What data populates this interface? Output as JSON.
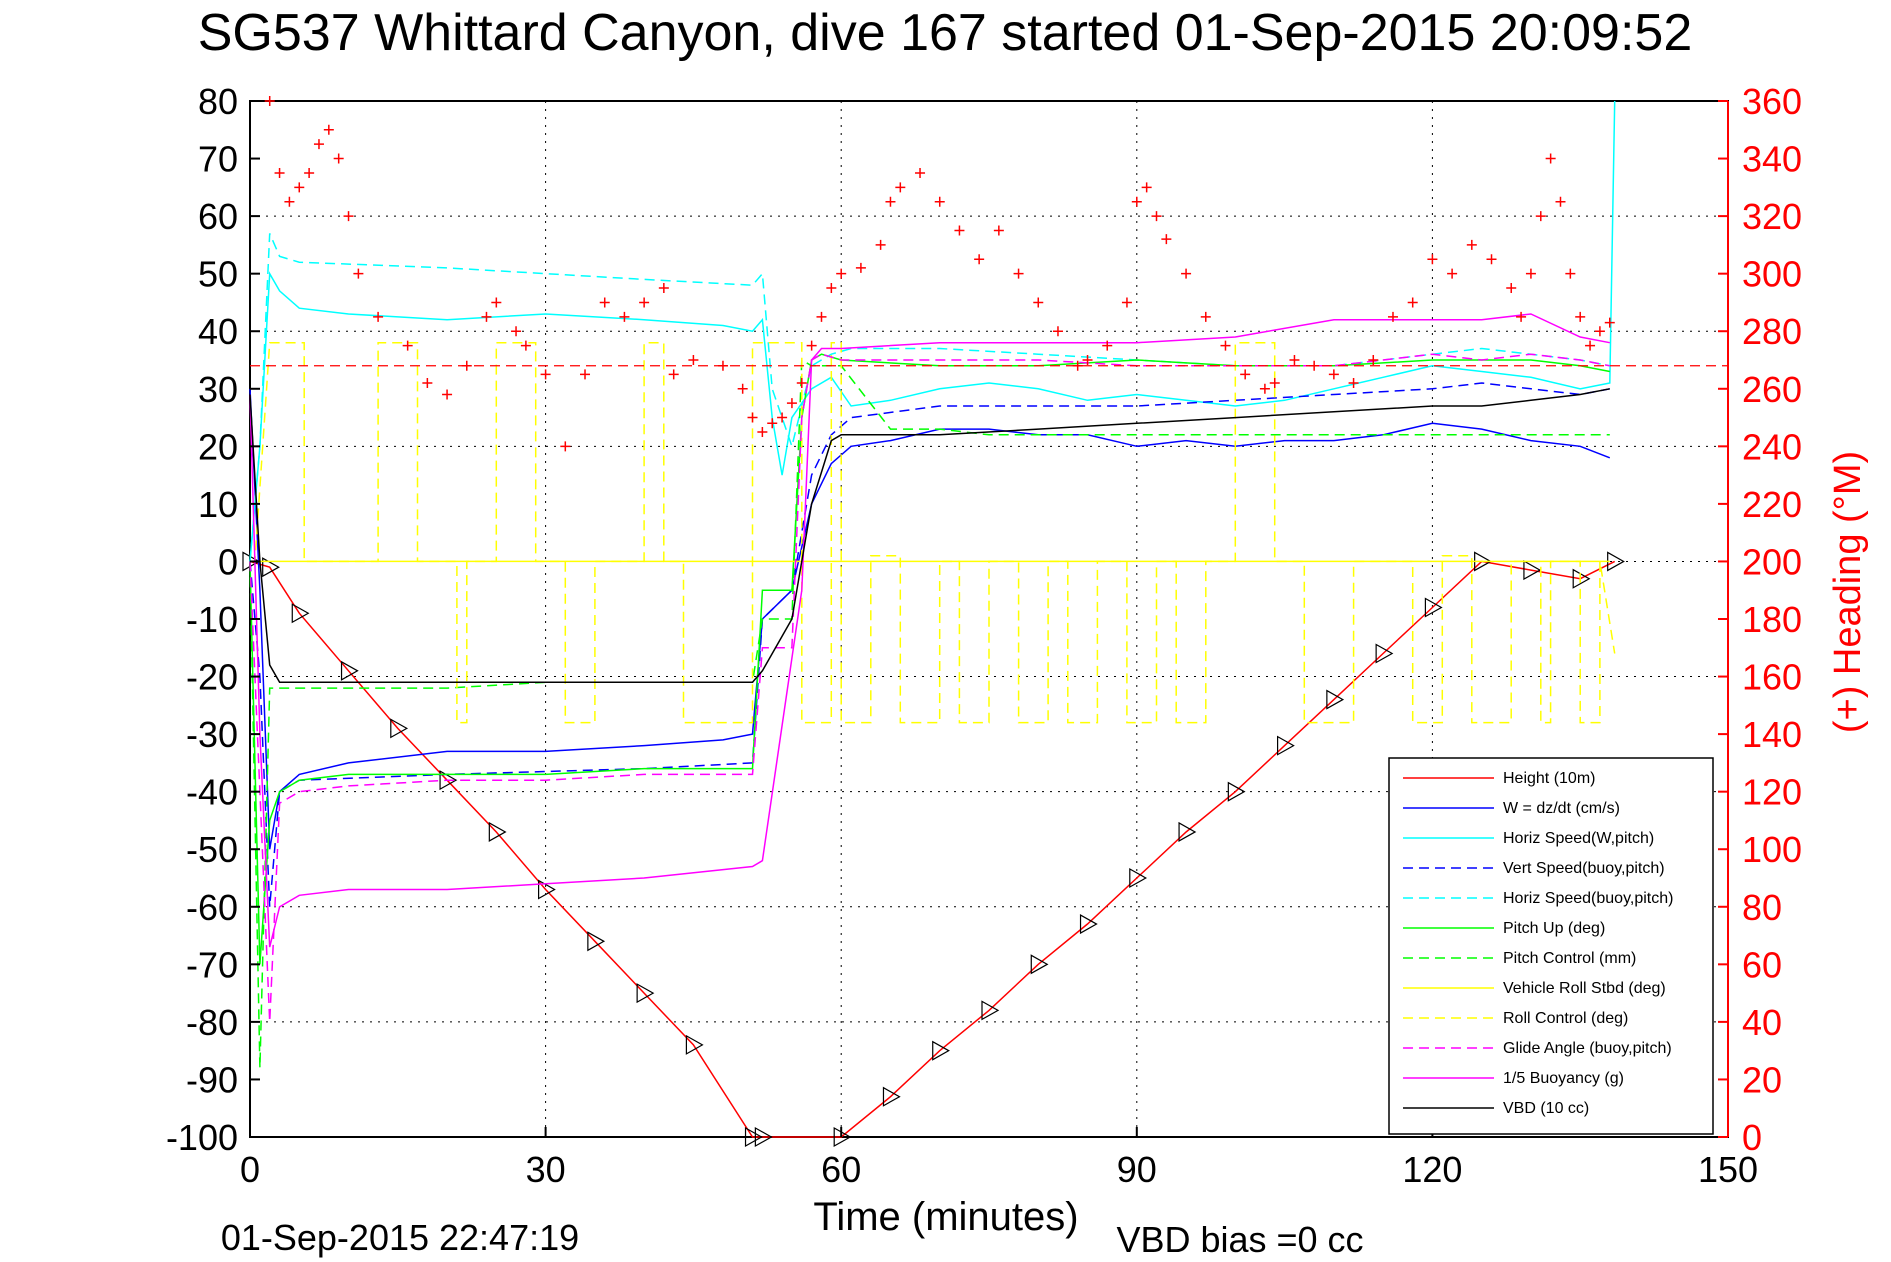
{
  "chart_data": {
    "type": "line",
    "title": "SG537 Whittard Canyon, dive 167 started 01-Sep-2015 20:09:52",
    "xlabel": "Time (minutes)",
    "ylabel": "",
    "y2label": "(+) Heading (°M)",
    "xlim": [
      0,
      150
    ],
    "ylim": [
      -100,
      80
    ],
    "y2lim": [
      0,
      360
    ],
    "x_ticks": [
      "0",
      "30",
      "60",
      "90",
      "120",
      "150"
    ],
    "y_ticks": [
      "80",
      "70",
      "60",
      "50",
      "40",
      "30",
      "20",
      "10",
      "0",
      "-10",
      "-20",
      "-30",
      "-40",
      "-50",
      "-60",
      "-70",
      "-80",
      "-90",
      "-100"
    ],
    "y2_ticks": [
      "360",
      "340",
      "320",
      "300",
      "280",
      "260",
      "240",
      "220",
      "200",
      "180",
      "160",
      "140",
      "120",
      "100",
      "80",
      "60",
      "40",
      "20",
      "0"
    ],
    "grid": true,
    "legend_position": "bottom-right",
    "footer_left": "01-Sep-2015 22:47:19",
    "footer_right": "VBD bias =0 cc",
    "series": [
      {
        "name": "Height (10m)",
        "color": "#ff0000",
        "style": "solid",
        "markers": "triangle",
        "x": [
          0,
          2,
          5,
          10,
          15,
          20,
          25,
          30,
          35,
          40,
          45,
          51,
          52,
          60,
          65,
          70,
          75,
          80,
          85,
          90,
          95,
          100,
          105,
          110,
          115,
          120,
          125,
          130,
          135,
          138.5
        ],
        "y": [
          0,
          -1,
          -9,
          -19,
          -29,
          -38,
          -47,
          -57,
          -66,
          -75,
          -84,
          -100,
          -100,
          -100,
          -93,
          -85,
          -78,
          -70,
          -63,
          -55,
          -47,
          -40,
          -32,
          -24,
          -16,
          -8,
          0,
          -1.5,
          -3,
          0
        ]
      },
      {
        "name": "W = dz/dt (cm/s)",
        "color": "#0000ff",
        "style": "solid",
        "markers": "none",
        "x": [
          0,
          1,
          2,
          3,
          5,
          10,
          20,
          30,
          40,
          48,
          51,
          52,
          55,
          57,
          59,
          61,
          65,
          70,
          75,
          80,
          85,
          90,
          95,
          100,
          105,
          110,
          115,
          120,
          125,
          130,
          135,
          138
        ],
        "y": [
          30,
          -5,
          -50,
          -40,
          -37,
          -35,
          -33,
          -33,
          -32,
          -31,
          -30,
          -10,
          -5,
          10,
          17,
          20,
          21,
          23,
          23,
          22,
          22,
          20,
          21,
          20,
          21,
          21,
          22,
          24,
          23,
          21,
          20,
          18
        ]
      },
      {
        "name": "Horiz Speed(W,pitch)",
        "color": "#00ffff",
        "style": "solid",
        "markers": "none",
        "x": [
          0,
          1,
          2,
          3,
          5,
          10,
          20,
          30,
          40,
          48,
          51,
          52,
          53,
          54,
          55,
          57,
          59,
          61,
          65,
          70,
          75,
          80,
          85,
          90,
          95,
          100,
          105,
          110,
          115,
          120,
          125,
          130,
          135,
          138,
          138.5
        ],
        "y": [
          0,
          20,
          50,
          47,
          44,
          43,
          42,
          43,
          42,
          41,
          40,
          42,
          25,
          15,
          25,
          30,
          32,
          27,
          28,
          30,
          31,
          30,
          28,
          29,
          28,
          27,
          28,
          30,
          32,
          34,
          33,
          32,
          30,
          31,
          80
        ]
      },
      {
        "name": "Vert Speed(buoy,pitch)",
        "color": "#0000ff",
        "style": "dashed",
        "markers": "none",
        "x": [
          0,
          1,
          2,
          3,
          5,
          20,
          40,
          51,
          52,
          55,
          57,
          59,
          61,
          70,
          80,
          90,
          100,
          110,
          120,
          125,
          130,
          135,
          138
        ],
        "y": [
          0,
          -20,
          -60,
          -40,
          -38,
          -37,
          -36,
          -35,
          -10,
          -5,
          15,
          22,
          25,
          27,
          27,
          27,
          28,
          29,
          30,
          31,
          30,
          29,
          30
        ]
      },
      {
        "name": "Horiz Speed(buoy,pitch)",
        "color": "#00ffff",
        "style": "dashed",
        "markers": "none",
        "x": [
          0,
          1,
          2,
          3,
          5,
          20,
          40,
          51,
          52,
          53,
          55,
          57,
          59,
          61,
          70,
          80,
          90,
          100,
          110,
          120,
          125,
          130,
          135,
          138
        ],
        "y": [
          0,
          20,
          57,
          53,
          52,
          51,
          49,
          48,
          50,
          30,
          20,
          34,
          36,
          37,
          37,
          36,
          35,
          34,
          34,
          36,
          37,
          36,
          35,
          34
        ]
      },
      {
        "name": "Pitch Up (deg)",
        "color": "#00ff00",
        "style": "solid",
        "markers": "none",
        "x": [
          0,
          1,
          2,
          3,
          5,
          10,
          20,
          30,
          40,
          51,
          52,
          55,
          56,
          57,
          58,
          60,
          70,
          80,
          90,
          100,
          110,
          120,
          125,
          130,
          135,
          138
        ],
        "y": [
          0,
          -70,
          -45,
          -40,
          -38,
          -37,
          -37,
          -37,
          -36,
          -36,
          -5,
          -5,
          25,
          35,
          36,
          35,
          34,
          34,
          35,
          34,
          34,
          35,
          35,
          35,
          34,
          33
        ]
      },
      {
        "name": "Pitch Control (mm)",
        "color": "#00ff00",
        "style": "dashed",
        "markers": "none",
        "x": [
          0,
          1,
          2,
          3,
          10,
          20,
          30,
          40,
          51,
          52,
          55,
          56,
          57,
          60,
          65,
          70,
          75,
          80,
          90,
          100,
          110,
          120,
          130,
          135,
          138
        ],
        "y": [
          0,
          -88,
          -22,
          -22,
          -22,
          -22,
          -21,
          -21,
          -21,
          -10,
          -10,
          35,
          34,
          34,
          23,
          23,
          22,
          22,
          22,
          22,
          22,
          22,
          22,
          22,
          22
        ]
      },
      {
        "name": "Vehicle Roll Stbd (deg)",
        "color": "#ffff00",
        "style": "solid",
        "markers": "none",
        "x": [
          0,
          60,
          138
        ],
        "y": [
          0,
          0,
          0
        ]
      },
      {
        "name": "Roll Control (deg)",
        "color": "#ffff00",
        "style": "dashed",
        "markers": "none",
        "x": [
          0,
          0.5,
          2,
          5.5,
          5.5,
          13,
          13,
          17,
          17,
          21,
          21,
          22,
          22,
          25,
          25,
          29,
          29,
          32,
          32,
          35,
          35,
          40,
          40,
          42,
          42,
          44,
          44,
          51,
          51,
          56,
          56,
          59,
          59,
          60,
          60,
          63,
          63,
          66,
          66,
          70,
          70,
          72,
          72,
          75,
          75,
          78,
          78,
          81,
          81,
          83,
          83,
          86,
          86,
          89,
          89,
          92,
          92,
          94,
          94,
          97,
          97,
          100,
          100,
          104,
          104,
          107,
          107,
          112,
          112,
          118,
          118,
          121,
          121,
          124,
          124,
          128,
          128,
          131,
          131,
          132,
          132,
          135,
          135,
          137,
          137,
          138.5
        ],
        "y": [
          0,
          0,
          38,
          38,
          0,
          0,
          38,
          38,
          0,
          0,
          -28,
          -28,
          0,
          0,
          38,
          38,
          0,
          0,
          -28,
          -28,
          0,
          0,
          38,
          38,
          0,
          0,
          -28,
          -28,
          38,
          38,
          -28,
          -28,
          38,
          38,
          -28,
          -28,
          1,
          1,
          -28,
          -28,
          0,
          0,
          -28,
          -28,
          0,
          0,
          -28,
          -28,
          0,
          0,
          -28,
          -28,
          0,
          0,
          -28,
          -28,
          0,
          0,
          -28,
          -28,
          0,
          0,
          38,
          38,
          0,
          0,
          -28,
          -28,
          0,
          0,
          -28,
          -28,
          1,
          1,
          -28,
          -28,
          0,
          0,
          -28,
          -28,
          0,
          0,
          -28,
          -28,
          0,
          -16
        ]
      },
      {
        "name": "Glide Angle (buoy,pitch)",
        "color": "#ff00ff",
        "style": "dashed",
        "markers": "none",
        "x": [
          0,
          1,
          2,
          3,
          5,
          10,
          20,
          30,
          40,
          51,
          52,
          55,
          56,
          57,
          58,
          60,
          70,
          80,
          90,
          100,
          110,
          120,
          125,
          130,
          135,
          138
        ],
        "y": [
          0,
          -40,
          -80,
          -42,
          -40,
          -39,
          -38,
          -38,
          -37,
          -37,
          -15,
          -15,
          25,
          35,
          36,
          35,
          35,
          35,
          34,
          34,
          34,
          36,
          35,
          36,
          35,
          34
        ]
      },
      {
        "name": "1/5 Buoyancy (g)",
        "color": "#ff00ff",
        "style": "solid",
        "markers": "none",
        "x": [
          0,
          1,
          2,
          3,
          5,
          10,
          20,
          30,
          40,
          51,
          52,
          56,
          57,
          58,
          60,
          70,
          80,
          90,
          100,
          110,
          120,
          125,
          130,
          135,
          138
        ],
        "y": [
          29,
          -30,
          -67,
          -60,
          -58,
          -57,
          -57,
          -56,
          -55,
          -53,
          -52,
          -5,
          35,
          37,
          37,
          38,
          38,
          38,
          39,
          42,
          42,
          42,
          43,
          39,
          38
        ]
      },
      {
        "name": "VBD (10 cc)",
        "color": "#000000",
        "style": "solid",
        "markers": "none",
        "x": [
          0,
          1,
          2,
          3,
          10,
          20,
          30,
          40,
          51,
          52,
          55,
          57,
          59,
          60,
          70,
          80,
          90,
          100,
          110,
          120,
          125,
          130,
          135,
          138
        ],
        "y": [
          29,
          0,
          -18,
          -21,
          -21,
          -21,
          -21,
          -21,
          -21,
          -19,
          -10,
          10,
          21,
          22,
          22,
          23,
          24,
          25,
          26,
          27,
          27,
          28,
          29,
          30
        ]
      },
      {
        "name": "Heading",
        "axis": "right",
        "color": "#ff0000",
        "style": "none",
        "markers": "plus",
        "x": [
          2,
          3,
          4,
          5,
          6,
          7,
          8,
          9,
          10,
          11,
          13,
          16,
          18,
          20,
          22,
          24,
          25,
          27,
          28,
          30,
          32,
          34,
          36,
          38,
          40,
          42,
          43,
          45,
          48,
          50,
          51,
          52,
          53,
          54,
          55,
          56,
          57,
          58,
          59,
          60,
          62,
          64,
          65,
          66,
          68,
          70,
          72,
          74,
          76,
          78,
          80,
          82,
          84,
          85,
          87,
          89,
          90,
          91,
          92,
          93,
          95,
          97,
          99,
          101,
          103,
          104,
          106,
          108,
          110,
          112,
          114,
          116,
          118,
          120,
          122,
          124,
          126,
          128,
          129,
          130,
          131,
          132,
          133,
          134,
          135,
          136,
          137,
          138
        ],
        "y": [
          360,
          335,
          325,
          330,
          335,
          345,
          350,
          340,
          320,
          300,
          285,
          275,
          262,
          258,
          268,
          285,
          290,
          280,
          275,
          265,
          240,
          265,
          290,
          285,
          290,
          295,
          265,
          270,
          268,
          260,
          250,
          245,
          248,
          250,
          255,
          262,
          275,
          285,
          295,
          300,
          302,
          310,
          325,
          330,
          335,
          325,
          315,
          305,
          315,
          300,
          290,
          280,
          268,
          270,
          275,
          290,
          325,
          330,
          320,
          312,
          300,
          285,
          275,
          265,
          260,
          262,
          270,
          268,
          265,
          262,
          270,
          285,
          290,
          305,
          300,
          310,
          305,
          295,
          285,
          300,
          320,
          340,
          325,
          300,
          285,
          275,
          280,
          283
        ]
      }
    ]
  }
}
